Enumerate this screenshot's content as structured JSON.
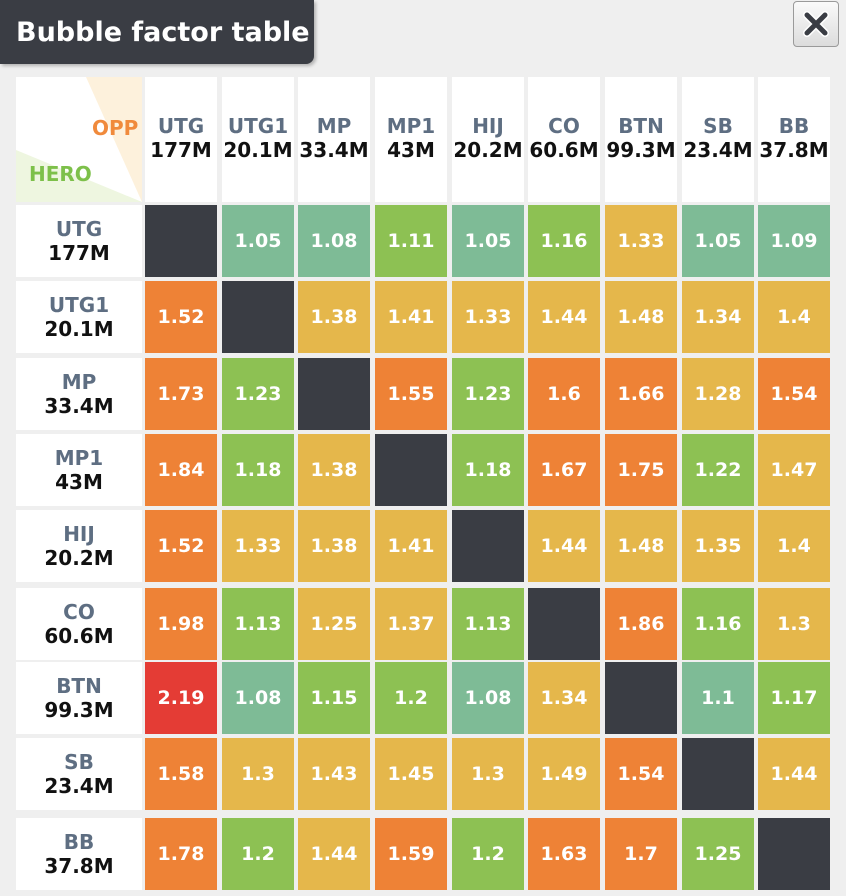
{
  "title": "Bubble factor table",
  "corner": {
    "opp_label": "OPP",
    "hero_label": "HERO"
  },
  "colors": {
    "dark": "#3a3d44",
    "teal": "#7ebb96",
    "green": "#8dc153",
    "yellow": "#e5b74b",
    "orange": "#ee8236",
    "red": "#e43c35"
  },
  "positions": [
    {
      "name": "UTG",
      "stack": "177M"
    },
    {
      "name": "UTG1",
      "stack": "20.1M"
    },
    {
      "name": "MP",
      "stack": "33.4M"
    },
    {
      "name": "MP1",
      "stack": "43M"
    },
    {
      "name": "HIJ",
      "stack": "20.2M"
    },
    {
      "name": "CO",
      "stack": "60.6M"
    },
    {
      "name": "BTN",
      "stack": "99.3M"
    },
    {
      "name": "SB",
      "stack": "23.4M"
    },
    {
      "name": "BB",
      "stack": "37.8M"
    }
  ],
  "rows": [
    [
      null,
      "1.05",
      "1.08",
      "1.11",
      "1.05",
      "1.16",
      "1.33",
      "1.05",
      "1.09"
    ],
    [
      "1.52",
      null,
      "1.38",
      "1.41",
      "1.33",
      "1.44",
      "1.48",
      "1.34",
      "1.4"
    ],
    [
      "1.73",
      "1.23",
      null,
      "1.55",
      "1.23",
      "1.6",
      "1.66",
      "1.28",
      "1.54"
    ],
    [
      "1.84",
      "1.18",
      "1.38",
      null,
      "1.18",
      "1.67",
      "1.75",
      "1.22",
      "1.47"
    ],
    [
      "1.52",
      "1.33",
      "1.38",
      "1.41",
      null,
      "1.44",
      "1.48",
      "1.35",
      "1.4"
    ],
    [
      "1.98",
      "1.13",
      "1.25",
      "1.37",
      "1.13",
      null,
      "1.86",
      "1.16",
      "1.3"
    ],
    [
      "2.19",
      "1.08",
      "1.15",
      "1.2",
      "1.08",
      "1.34",
      null,
      "1.1",
      "1.17"
    ],
    [
      "1.58",
      "1.3",
      "1.43",
      "1.45",
      "1.3",
      "1.49",
      "1.54",
      null,
      "1.44"
    ],
    [
      "1.78",
      "1.2",
      "1.44",
      "1.59",
      "1.2",
      "1.63",
      "1.7",
      "1.25",
      null
    ]
  ],
  "cell_colors": [
    [
      "dark",
      "teal",
      "teal",
      "green",
      "teal",
      "green",
      "yellow",
      "teal",
      "teal"
    ],
    [
      "orange",
      "dark",
      "yellow",
      "yellow",
      "yellow",
      "yellow",
      "yellow",
      "yellow",
      "yellow"
    ],
    [
      "orange",
      "green",
      "dark",
      "orange",
      "green",
      "orange",
      "orange",
      "yellow",
      "orange"
    ],
    [
      "orange",
      "green",
      "yellow",
      "dark",
      "green",
      "orange",
      "orange",
      "green",
      "yellow"
    ],
    [
      "orange",
      "yellow",
      "yellow",
      "yellow",
      "dark",
      "yellow",
      "yellow",
      "yellow",
      "yellow"
    ],
    [
      "orange",
      "green",
      "yellow",
      "yellow",
      "green",
      "dark",
      "orange",
      "green",
      "yellow"
    ],
    [
      "red",
      "teal",
      "green",
      "green",
      "teal",
      "yellow",
      "dark",
      "teal",
      "green"
    ],
    [
      "orange",
      "yellow",
      "yellow",
      "yellow",
      "yellow",
      "yellow",
      "orange",
      "dark",
      "yellow"
    ],
    [
      "orange",
      "green",
      "yellow",
      "orange",
      "green",
      "orange",
      "orange",
      "green",
      "dark"
    ]
  ]
}
